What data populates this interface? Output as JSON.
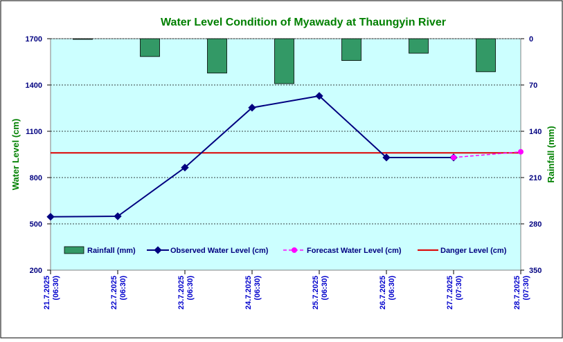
{
  "chart_data": {
    "type": "line",
    "title": "Water Level Condition of  Myawady at Thaungyin River",
    "ylabel": "Water Level (cm)",
    "y2label": "Rainfall (mm)",
    "ylim": [
      200,
      1700
    ],
    "yticks": [
      200,
      500,
      800,
      1100,
      1400,
      1700
    ],
    "y2lim": [
      0,
      350
    ],
    "y2ticks": [
      0,
      70,
      140,
      210,
      280,
      350
    ],
    "y2_inverted": true,
    "grid": true,
    "legend_position": "bottom-inside",
    "categories": [
      "21.7.2025 (06:30)",
      "22.7.2025 (06:30)",
      "23.7.2025 (06:30)",
      "24.7.2025 (06:30)",
      "25.7.2025 (06:30)",
      "26.7.2025 (06:30)",
      "27.7.2025 (07:30)",
      "28.7.2025 (07:30)"
    ],
    "series": [
      {
        "name": "Rainfall (mm)",
        "kind": "bar",
        "axis": "right",
        "color": "#339966",
        "values": [
          1,
          27,
          52,
          68,
          33,
          22,
          50,
          null
        ]
      },
      {
        "name": "Observed Water Level (cm)",
        "kind": "line",
        "axis": "left",
        "color": "#000080",
        "values": [
          546,
          549,
          865,
          1253,
          1329,
          930,
          930,
          null
        ]
      },
      {
        "name": "Forecast Water Level (cm)",
        "kind": "dashed-line",
        "axis": "left",
        "color": "#ff00ff",
        "values": [
          null,
          null,
          null,
          null,
          null,
          null,
          930,
          967
        ]
      },
      {
        "name": "Danger Level (cm)",
        "kind": "hline",
        "axis": "left",
        "color": "#dd0000",
        "value": 960
      }
    ]
  }
}
